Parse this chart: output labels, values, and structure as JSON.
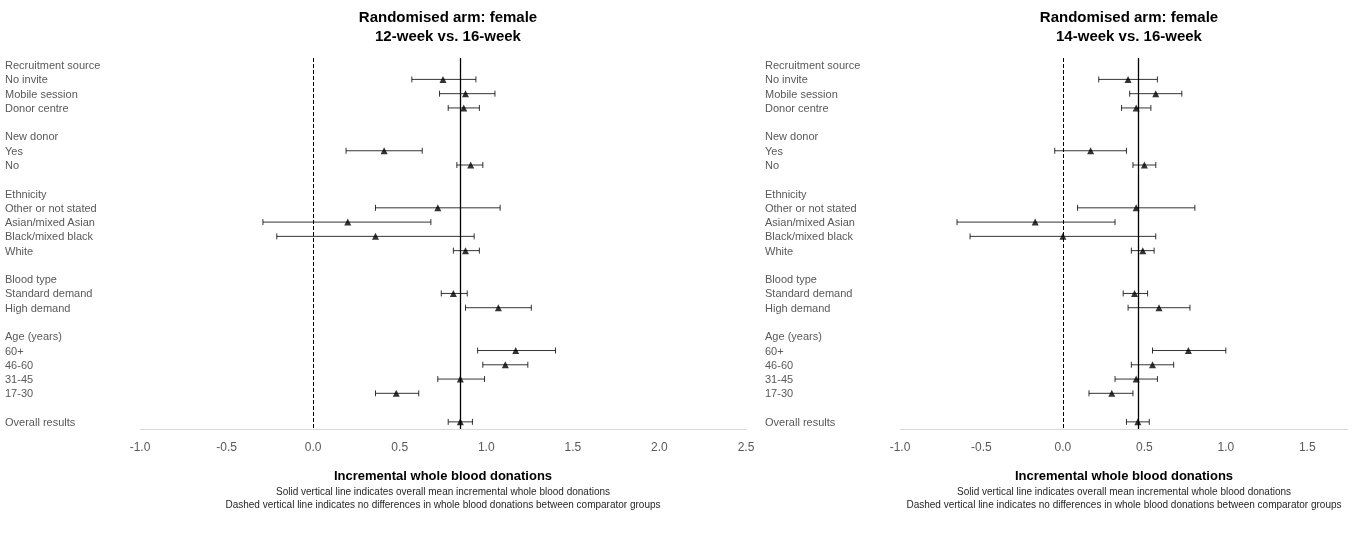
{
  "chart_data": [
    {
      "type": "scatter",
      "orientation": "horizontal",
      "title": "Randomised arm: female",
      "subtitle": "12-week vs. 16-week",
      "xlabel": "Incremental whole blood donations",
      "annotations": [
        "Solid vertical line indicates overall mean incremental whole blood donations",
        "Dashed vertical line indicates no differences in whole blood donations between comparator groups"
      ],
      "categories": [
        "Recruitment source",
        "No invite",
        "Mobile session",
        "Donor centre",
        null,
        "New donor",
        "Yes",
        "No",
        null,
        "Ethnicity",
        "Other or not stated",
        "Asian/mixed Asian",
        "Black/mixed black",
        "White",
        null,
        "Blood type",
        "Standard demand",
        "High demand",
        null,
        "Age (years)",
        "60+",
        "46-60",
        "31-45",
        "17-30",
        null,
        "Overall results"
      ],
      "values": [
        null,
        0.75,
        0.88,
        0.87,
        null,
        null,
        0.41,
        0.91,
        null,
        null,
        0.72,
        0.2,
        0.36,
        0.88,
        null,
        null,
        0.81,
        1.07,
        null,
        null,
        1.17,
        1.11,
        0.85,
        0.48,
        null,
        0.85
      ],
      "errors": [
        null,
        [
          0.57,
          0.94
        ],
        [
          0.73,
          1.05
        ],
        [
          0.78,
          0.96
        ],
        null,
        null,
        [
          0.19,
          0.63
        ],
        [
          0.83,
          0.98
        ],
        null,
        null,
        [
          0.36,
          1.08
        ],
        [
          -0.29,
          0.68
        ],
        [
          -0.21,
          0.93
        ],
        [
          0.81,
          0.96
        ],
        null,
        null,
        [
          0.74,
          0.89
        ],
        [
          0.88,
          1.26
        ],
        null,
        null,
        [
          0.95,
          1.4
        ],
        [
          0.98,
          1.24
        ],
        [
          0.72,
          0.99
        ],
        [
          0.36,
          0.61
        ],
        null,
        [
          0.78,
          0.92
        ]
      ],
      "color": "#000000",
      "marker": "triangle",
      "xlim": [
        -1.0,
        2.5
      ],
      "xticks": [
        {
          "value": -1,
          "label": "-1.0"
        },
        {
          "value": -0.5,
          "label": "-0.5"
        },
        {
          "value": 0,
          "label": "0.0"
        },
        {
          "value": 0.5,
          "label": "0.5"
        },
        {
          "value": 1,
          "label": "1.0"
        },
        {
          "value": 1.5,
          "label": "1.5"
        },
        {
          "value": 2,
          "label": "2.0"
        },
        {
          "value": 2.5,
          "label": "2.5"
        }
      ],
      "ref_lines": [
        {
          "axis": "x",
          "value": 0,
          "color": "#000000",
          "line_style": "dashed"
        },
        {
          "axis": "x",
          "value": 0.85,
          "color": "#000000",
          "line_style": "solid"
        }
      ]
    },
    {
      "type": "scatter",
      "orientation": "horizontal",
      "title": "Randomised arm: female",
      "subtitle": "14-week vs. 16-week",
      "xlabel": "Incremental whole blood donations",
      "annotations": [
        "Solid vertical line indicates overall mean incremental whole blood donations",
        "Dashed vertical line indicates no differences in whole blood donations between comparator groups"
      ],
      "categories": [
        "Recruitment source",
        "No invite",
        "Mobile session",
        "Donor centre",
        null,
        "New donor",
        "Yes",
        "No",
        null,
        "Ethnicity",
        "Other or not stated",
        "Asian/mixed Asian",
        "Black/mixed black",
        "White",
        null,
        "Blood type",
        "Standard demand",
        "High demand",
        null,
        "Age (years)",
        "60+",
        "46-60",
        "31-45",
        "17-30",
        null,
        "Overall results"
      ],
      "values": [
        null,
        0.4,
        0.57,
        0.45,
        null,
        null,
        0.17,
        0.5,
        null,
        null,
        0.45,
        -0.17,
        0.0,
        0.49,
        null,
        null,
        0.44,
        0.59,
        null,
        null,
        0.77,
        0.55,
        0.45,
        0.3,
        null,
        0.46
      ],
      "errors": [
        null,
        [
          0.22,
          0.58
        ],
        [
          0.41,
          0.73
        ],
        [
          0.36,
          0.54
        ],
        null,
        null,
        [
          -0.05,
          0.39
        ],
        [
          0.43,
          0.57
        ],
        null,
        null,
        [
          0.09,
          0.81
        ],
        [
          -0.65,
          0.32
        ],
        [
          -0.57,
          0.57
        ],
        [
          0.42,
          0.56
        ],
        null,
        null,
        [
          0.37,
          0.52
        ],
        [
          0.4,
          0.78
        ],
        null,
        null,
        [
          0.55,
          1.0
        ],
        [
          0.42,
          0.68
        ],
        [
          0.32,
          0.58
        ],
        [
          0.16,
          0.43
        ],
        null,
        [
          0.39,
          0.53
        ]
      ],
      "color": "#000000",
      "marker": "triangle",
      "xlim": [
        -1.0,
        1.75
      ],
      "xticks": [
        {
          "value": -1,
          "label": "-1.0"
        },
        {
          "value": -0.5,
          "label": "-0.5"
        },
        {
          "value": 0,
          "label": "0.0"
        },
        {
          "value": 0.5,
          "label": "0.5"
        },
        {
          "value": 1,
          "label": "1.0"
        },
        {
          "value": 1.5,
          "label": "1.5"
        }
      ],
      "ref_lines": [
        {
          "axis": "x",
          "value": 0,
          "color": "#000000",
          "line_style": "dashed"
        },
        {
          "axis": "x",
          "value": 0.46,
          "color": "#000000",
          "line_style": "solid"
        }
      ]
    }
  ]
}
